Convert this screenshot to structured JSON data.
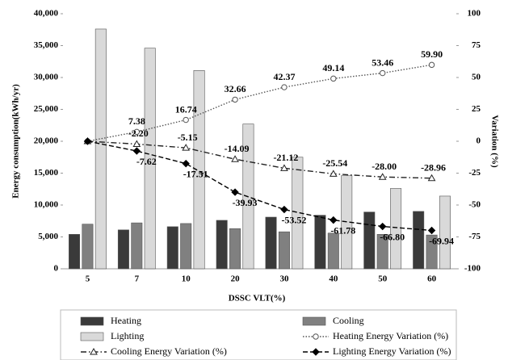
{
  "chart_data": {
    "type": "bar",
    "y_label": "Energy consumption(kWh/yr)",
    "y2_label": "Variation (%)",
    "x_label": "DSSC VLT(%)",
    "categories": [
      "5",
      "7",
      "10",
      "20",
      "30",
      "40",
      "50",
      "60"
    ],
    "ylim": [
      0,
      40000
    ],
    "yticks": [
      0,
      {
        "value": 5000,
        "label": "5,000"
      },
      {
        "value": 10000,
        "label": "10,000"
      },
      {
        "value": 15000,
        "label": "15,000"
      },
      {
        "value": 20000,
        "label": "20,000"
      },
      {
        "value": 25000,
        "label": "25,000"
      },
      {
        "value": 30000,
        "label": "30,000"
      },
      {
        "value": 35000,
        "label": "35,000"
      },
      {
        "value": 40000,
        "label": "40,000"
      }
    ],
    "y2lim": [
      -100,
      100
    ],
    "y2ticks": [
      -100,
      -75,
      -50,
      -25,
      0,
      25,
      50,
      75,
      100
    ],
    "legend": "bottom",
    "series": [
      {
        "name": "Heating",
        "type": "bar",
        "color": "#3a3a3a",
        "values": [
          5400,
          6100,
          6600,
          7600,
          8100,
          8400,
          8900,
          9000
        ]
      },
      {
        "name": "Cooling",
        "type": "bar",
        "color": "#808080",
        "values": [
          7000,
          7200,
          7100,
          6300,
          5800,
          5600,
          5400,
          5300
        ]
      },
      {
        "name": "Lighting",
        "type": "bar",
        "color": "#d9d9d9",
        "values": [
          37600,
          34600,
          31100,
          22700,
          17500,
          14600,
          12600,
          11400
        ]
      },
      {
        "name": "Heating Energy Variation (%)",
        "type": "line",
        "axis": "y2",
        "color": "#555555",
        "dash": "dotted",
        "marker": "circle",
        "values": [
          0,
          7.38,
          16.74,
          32.66,
          42.37,
          49.14,
          53.46,
          59.9
        ],
        "value_labels": [
          null,
          "7.38",
          "16.74",
          "32.66",
          "42.37",
          "49.14",
          "53.46",
          "59.90"
        ]
      },
      {
        "name": "Cooling Energy Variation (%)",
        "type": "line",
        "axis": "y2",
        "color": "#222222",
        "dash": "dashdot",
        "marker": "triangle",
        "values": [
          0,
          -2.2,
          -5.15,
          -14.09,
          -21.12,
          -25.54,
          -28,
          -28.96
        ],
        "value_labels": [
          null,
          "-2.20",
          "-5.15",
          "-14.09",
          "-21.12",
          "-25.54",
          "-28.00",
          "-28.96"
        ]
      },
      {
        "name": "Lighting Energy Variation (%)",
        "type": "line",
        "axis": "y2",
        "color": "#000000",
        "dash": "dashed",
        "marker": "diamond",
        "values": [
          0,
          -7.62,
          -17.51,
          -39.93,
          -53.52,
          -61.78,
          -66.8,
          -69.94
        ],
        "value_labels": [
          null,
          "-7.62",
          "-17.51",
          "-39.93",
          "-53.52",
          "-61.78",
          "-66.80",
          "-69.94"
        ]
      }
    ]
  }
}
